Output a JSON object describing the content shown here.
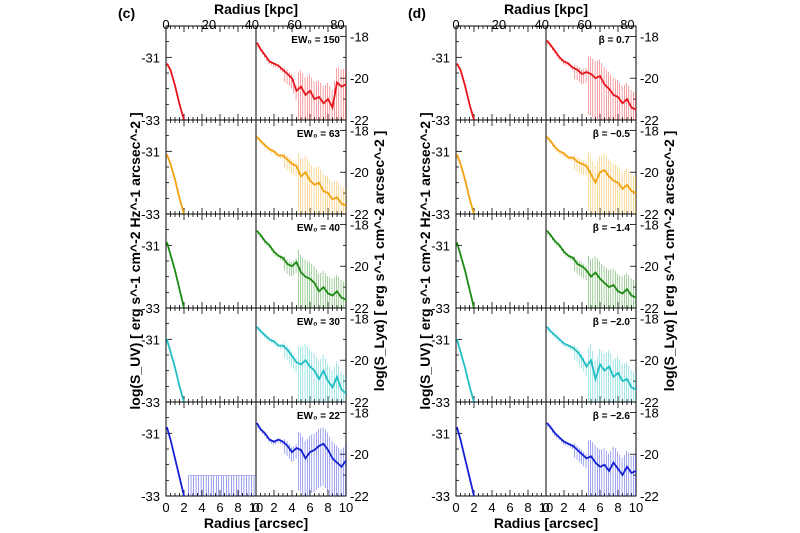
{
  "figure": {
    "x_bottom_label": "Radius [arcsec]",
    "x_top_label": "Radius [kpc]",
    "y_left_label": "log(S_UV) [ erg s^-1 cm^-2 Hz^-1 arcsec^-2 ]",
    "y_right_label": "log(S_Lyα) [ erg s^-1 cm^-2 arcsec^-2 ]",
    "x_bottom_ticks": [
      "0",
      "2",
      "4",
      "6",
      "8",
      "10"
    ],
    "x_top_ticks": [
      "0",
      "20",
      "40",
      "60",
      "80"
    ],
    "y_left_ticks": [
      "-31",
      "-33"
    ],
    "y_right_ticks": [
      "-18",
      "-20",
      "-22"
    ]
  },
  "chart_data": [
    {
      "type": "line",
      "panel_label": "(c)",
      "xlim": [
        0,
        10
      ],
      "x_top_lim_kpc": [
        0,
        84
      ],
      "ylim_uv": [
        -33,
        -30
      ],
      "ylim_lya": [
        -22,
        -17.5
      ],
      "rows": [
        {
          "label": "EW₀ = 150",
          "color": "#e8141b",
          "uv": {
            "x": [
              0.1,
              0.5,
              1.0,
              1.5,
              2.0
            ],
            "y": [
              -31.2,
              -31.4,
              -31.9,
              -32.5,
              -33.0
            ]
          },
          "lya": {
            "x": [
              0.1,
              0.5,
              1.0,
              1.5,
              2.0,
              2.5,
              3.0,
              3.5,
              4.0,
              4.5,
              5.0,
              5.5,
              6.0,
              6.5,
              7.0,
              7.5,
              8.0,
              8.5,
              9.0,
              9.5,
              10.0
            ],
            "y": [
              -18.3,
              -18.6,
              -18.9,
              -19.2,
              -19.3,
              -19.4,
              -19.6,
              -19.8,
              -20.0,
              -20.6,
              -20.4,
              -20.8,
              -20.6,
              -21.0,
              -20.9,
              -21.2,
              -21.0,
              -21.4,
              -20.2,
              -20.4,
              -20.3
            ]
          }
        },
        {
          "label": "EW₀ = 63",
          "color": "#f2a20c",
          "uv": {
            "x": [
              0.1,
              0.5,
              1.0,
              1.5,
              2.0
            ],
            "y": [
              -31.1,
              -31.4,
              -31.9,
              -32.5,
              -33.0
            ]
          },
          "lya": {
            "x": [
              0.1,
              0.5,
              1.0,
              1.5,
              2.0,
              2.5,
              3.0,
              3.5,
              4.0,
              4.5,
              5.0,
              5.5,
              6.0,
              6.5,
              7.0,
              7.5,
              8.0,
              8.5,
              9.0,
              9.5,
              10.0
            ],
            "y": [
              -18.3,
              -18.5,
              -18.7,
              -18.9,
              -19.0,
              -19.2,
              -19.2,
              -19.4,
              -19.6,
              -19.7,
              -20.2,
              -20.0,
              -20.4,
              -20.6,
              -20.5,
              -20.9,
              -21.0,
              -21.3,
              -21.2,
              -21.5,
              -21.6
            ]
          }
        },
        {
          "label": "EW₀ = 40",
          "color": "#1c8a12",
          "uv": {
            "x": [
              0.1,
              0.5,
              1.0,
              1.5,
              2.0
            ],
            "y": [
              -30.9,
              -31.3,
              -31.8,
              -32.4,
              -33.0
            ]
          },
          "lya": {
            "x": [
              0.1,
              0.5,
              1.0,
              1.5,
              2.0,
              2.5,
              3.0,
              3.5,
              4.0,
              4.5,
              5.0,
              5.5,
              6.0,
              6.5,
              7.0,
              7.5,
              8.0,
              8.5,
              9.0,
              9.5,
              10.0
            ],
            "y": [
              -18.3,
              -18.5,
              -18.8,
              -19.0,
              -19.3,
              -19.5,
              -19.6,
              -19.9,
              -20.0,
              -19.8,
              -20.3,
              -20.5,
              -20.6,
              -20.8,
              -21.2,
              -21.0,
              -21.3,
              -21.4,
              -21.2,
              -21.5,
              -21.6
            ]
          }
        },
        {
          "label": "EW₀ = 30",
          "color": "#1fbfc4",
          "uv": {
            "x": [
              0.1,
              0.5,
              1.0,
              1.5,
              2.0
            ],
            "y": [
              -31.0,
              -31.4,
              -31.9,
              -32.5,
              -33.0
            ]
          },
          "lya": {
            "x": [
              0.1,
              0.5,
              1.0,
              1.5,
              2.0,
              2.5,
              3.0,
              3.5,
              4.0,
              4.5,
              5.0,
              5.5,
              6.0,
              6.5,
              7.0,
              7.5,
              8.0,
              8.5,
              9.0,
              9.5,
              10.0
            ],
            "y": [
              -18.4,
              -18.6,
              -18.8,
              -19.0,
              -19.1,
              -19.3,
              -19.3,
              -19.5,
              -19.8,
              -20.1,
              -20.2,
              -20.0,
              -20.3,
              -20.5,
              -20.9,
              -20.5,
              -21.0,
              -21.3,
              -20.8,
              -21.4,
              -21.6
            ]
          }
        },
        {
          "label": "EW₀ = 22",
          "color": "#1420d6",
          "uv": {
            "x": [
              0.1,
              0.5,
              1.0,
              1.5,
              2.0
            ],
            "y": [
              -30.8,
              -31.2,
              -31.8,
              -32.4,
              -33.0
            ]
          },
          "lya": {
            "x": [
              0.1,
              0.5,
              1.0,
              1.5,
              2.0,
              2.5,
              3.0,
              3.5,
              4.0,
              4.5,
              5.0,
              5.5,
              6.0,
              6.5,
              7.0,
              7.5,
              8.0,
              8.5,
              9.0,
              9.5,
              10.0
            ],
            "y": [
              -18.5,
              -18.8,
              -19.0,
              -19.3,
              -19.4,
              -19.3,
              -19.4,
              -19.6,
              -19.9,
              -19.7,
              -19.8,
              -20.2,
              -19.9,
              -19.8,
              -19.6,
              -19.5,
              -19.8,
              -20.2,
              -20.4,
              -20.6,
              -20.3
            ]
          }
        }
      ]
    },
    {
      "type": "line",
      "panel_label": "(d)",
      "xlim": [
        0,
        10
      ],
      "x_top_lim_kpc": [
        0,
        84
      ],
      "ylim_uv": [
        -33,
        -30
      ],
      "ylim_lya": [
        -22,
        -17.5
      ],
      "rows": [
        {
          "label": "β = 0.7",
          "color": "#e8141b",
          "uv": {
            "x": [
              0.1,
              0.5,
              1.0,
              1.5,
              2.0
            ],
            "y": [
              -31.2,
              -31.4,
              -31.9,
              -32.5,
              -33.0
            ]
          },
          "lya": {
            "x": [
              0.1,
              0.5,
              1.0,
              1.5,
              2.0,
              2.5,
              3.0,
              3.5,
              4.0,
              4.5,
              5.0,
              5.5,
              6.0,
              6.5,
              7.0,
              7.5,
              8.0,
              8.5,
              9.0,
              9.5,
              10.0
            ],
            "y": [
              -18.2,
              -18.4,
              -18.7,
              -19.0,
              -19.2,
              -19.3,
              -19.5,
              -19.6,
              -19.8,
              -19.7,
              -19.8,
              -20.0,
              -19.9,
              -20.3,
              -20.5,
              -20.8,
              -20.9,
              -21.2,
              -21.0,
              -21.4,
              -21.5
            ]
          }
        },
        {
          "label": "β = −0.5",
          "color": "#f2a20c",
          "uv": {
            "x": [
              0.1,
              0.5,
              1.0,
              1.5,
              2.0
            ],
            "y": [
              -31.1,
              -31.4,
              -31.9,
              -32.5,
              -33.0
            ]
          },
          "lya": {
            "x": [
              0.1,
              0.5,
              1.0,
              1.5,
              2.0,
              2.5,
              3.0,
              3.5,
              4.0,
              4.5,
              5.0,
              5.5,
              6.0,
              6.5,
              7.0,
              7.5,
              8.0,
              8.5,
              9.0,
              9.5,
              10.0
            ],
            "y": [
              -18.3,
              -18.5,
              -18.8,
              -19.0,
              -19.1,
              -19.3,
              -19.3,
              -19.5,
              -19.6,
              -19.7,
              -20.1,
              -20.5,
              -20.0,
              -19.9,
              -20.2,
              -20.4,
              -20.5,
              -20.8,
              -20.6,
              -20.9,
              -21.0
            ]
          }
        },
        {
          "label": "β = −1.4",
          "color": "#1c8a12",
          "uv": {
            "x": [
              0.1,
              0.5,
              1.0,
              1.5,
              2.0
            ],
            "y": [
              -30.9,
              -31.3,
              -31.8,
              -32.4,
              -33.0
            ]
          },
          "lya": {
            "x": [
              0.1,
              0.5,
              1.0,
              1.5,
              2.0,
              2.5,
              3.0,
              3.5,
              4.0,
              4.5,
              5.0,
              5.5,
              6.0,
              6.5,
              7.0,
              7.5,
              8.0,
              8.5,
              9.0,
              9.5,
              10.0
            ],
            "y": [
              -18.3,
              -18.5,
              -18.8,
              -19.0,
              -19.3,
              -19.5,
              -19.6,
              -19.9,
              -20.0,
              -20.2,
              -20.5,
              -20.3,
              -20.6,
              -20.8,
              -21.0,
              -20.9,
              -21.2,
              -21.3,
              -21.1,
              -21.4,
              -21.5
            ]
          }
        },
        {
          "label": "β = −2.0",
          "color": "#1fbfc4",
          "uv": {
            "x": [
              0.1,
              0.5,
              1.0,
              1.5,
              2.0
            ],
            "y": [
              -31.0,
              -31.4,
              -31.9,
              -32.5,
              -33.0
            ]
          },
          "lya": {
            "x": [
              0.1,
              0.5,
              1.0,
              1.5,
              2.0,
              2.5,
              3.0,
              3.5,
              4.0,
              4.5,
              5.0,
              5.5,
              6.0,
              6.5,
              7.0,
              7.5,
              8.0,
              8.5,
              9.0,
              9.5,
              10.0
            ],
            "y": [
              -18.4,
              -18.6,
              -18.8,
              -19.0,
              -19.2,
              -19.3,
              -19.4,
              -19.6,
              -19.9,
              -20.3,
              -20.0,
              -20.9,
              -20.2,
              -20.5,
              -20.3,
              -20.8,
              -20.6,
              -21.0,
              -20.9,
              -21.3,
              -21.4
            ]
          }
        },
        {
          "label": "β = −2.6",
          "color": "#1420d6",
          "uv": {
            "x": [
              0.1,
              0.5,
              1.0,
              1.5,
              2.0
            ],
            "y": [
              -30.8,
              -31.2,
              -31.8,
              -32.4,
              -33.0
            ]
          },
          "lya": {
            "x": [
              0.1,
              0.5,
              1.0,
              1.5,
              2.0,
              2.5,
              3.0,
              3.5,
              4.0,
              4.5,
              5.0,
              5.5,
              6.0,
              6.5,
              7.0,
              7.5,
              8.0,
              8.5,
              9.0,
              9.5,
              10.0
            ],
            "y": [
              -18.5,
              -18.7,
              -19.0,
              -19.2,
              -19.4,
              -19.5,
              -19.6,
              -19.8,
              -20.0,
              -20.2,
              -20.1,
              -20.4,
              -20.6,
              -20.5,
              -20.8,
              -20.4,
              -20.7,
              -21.0,
              -20.6,
              -20.9,
              -20.8
            ]
          }
        }
      ]
    }
  ]
}
